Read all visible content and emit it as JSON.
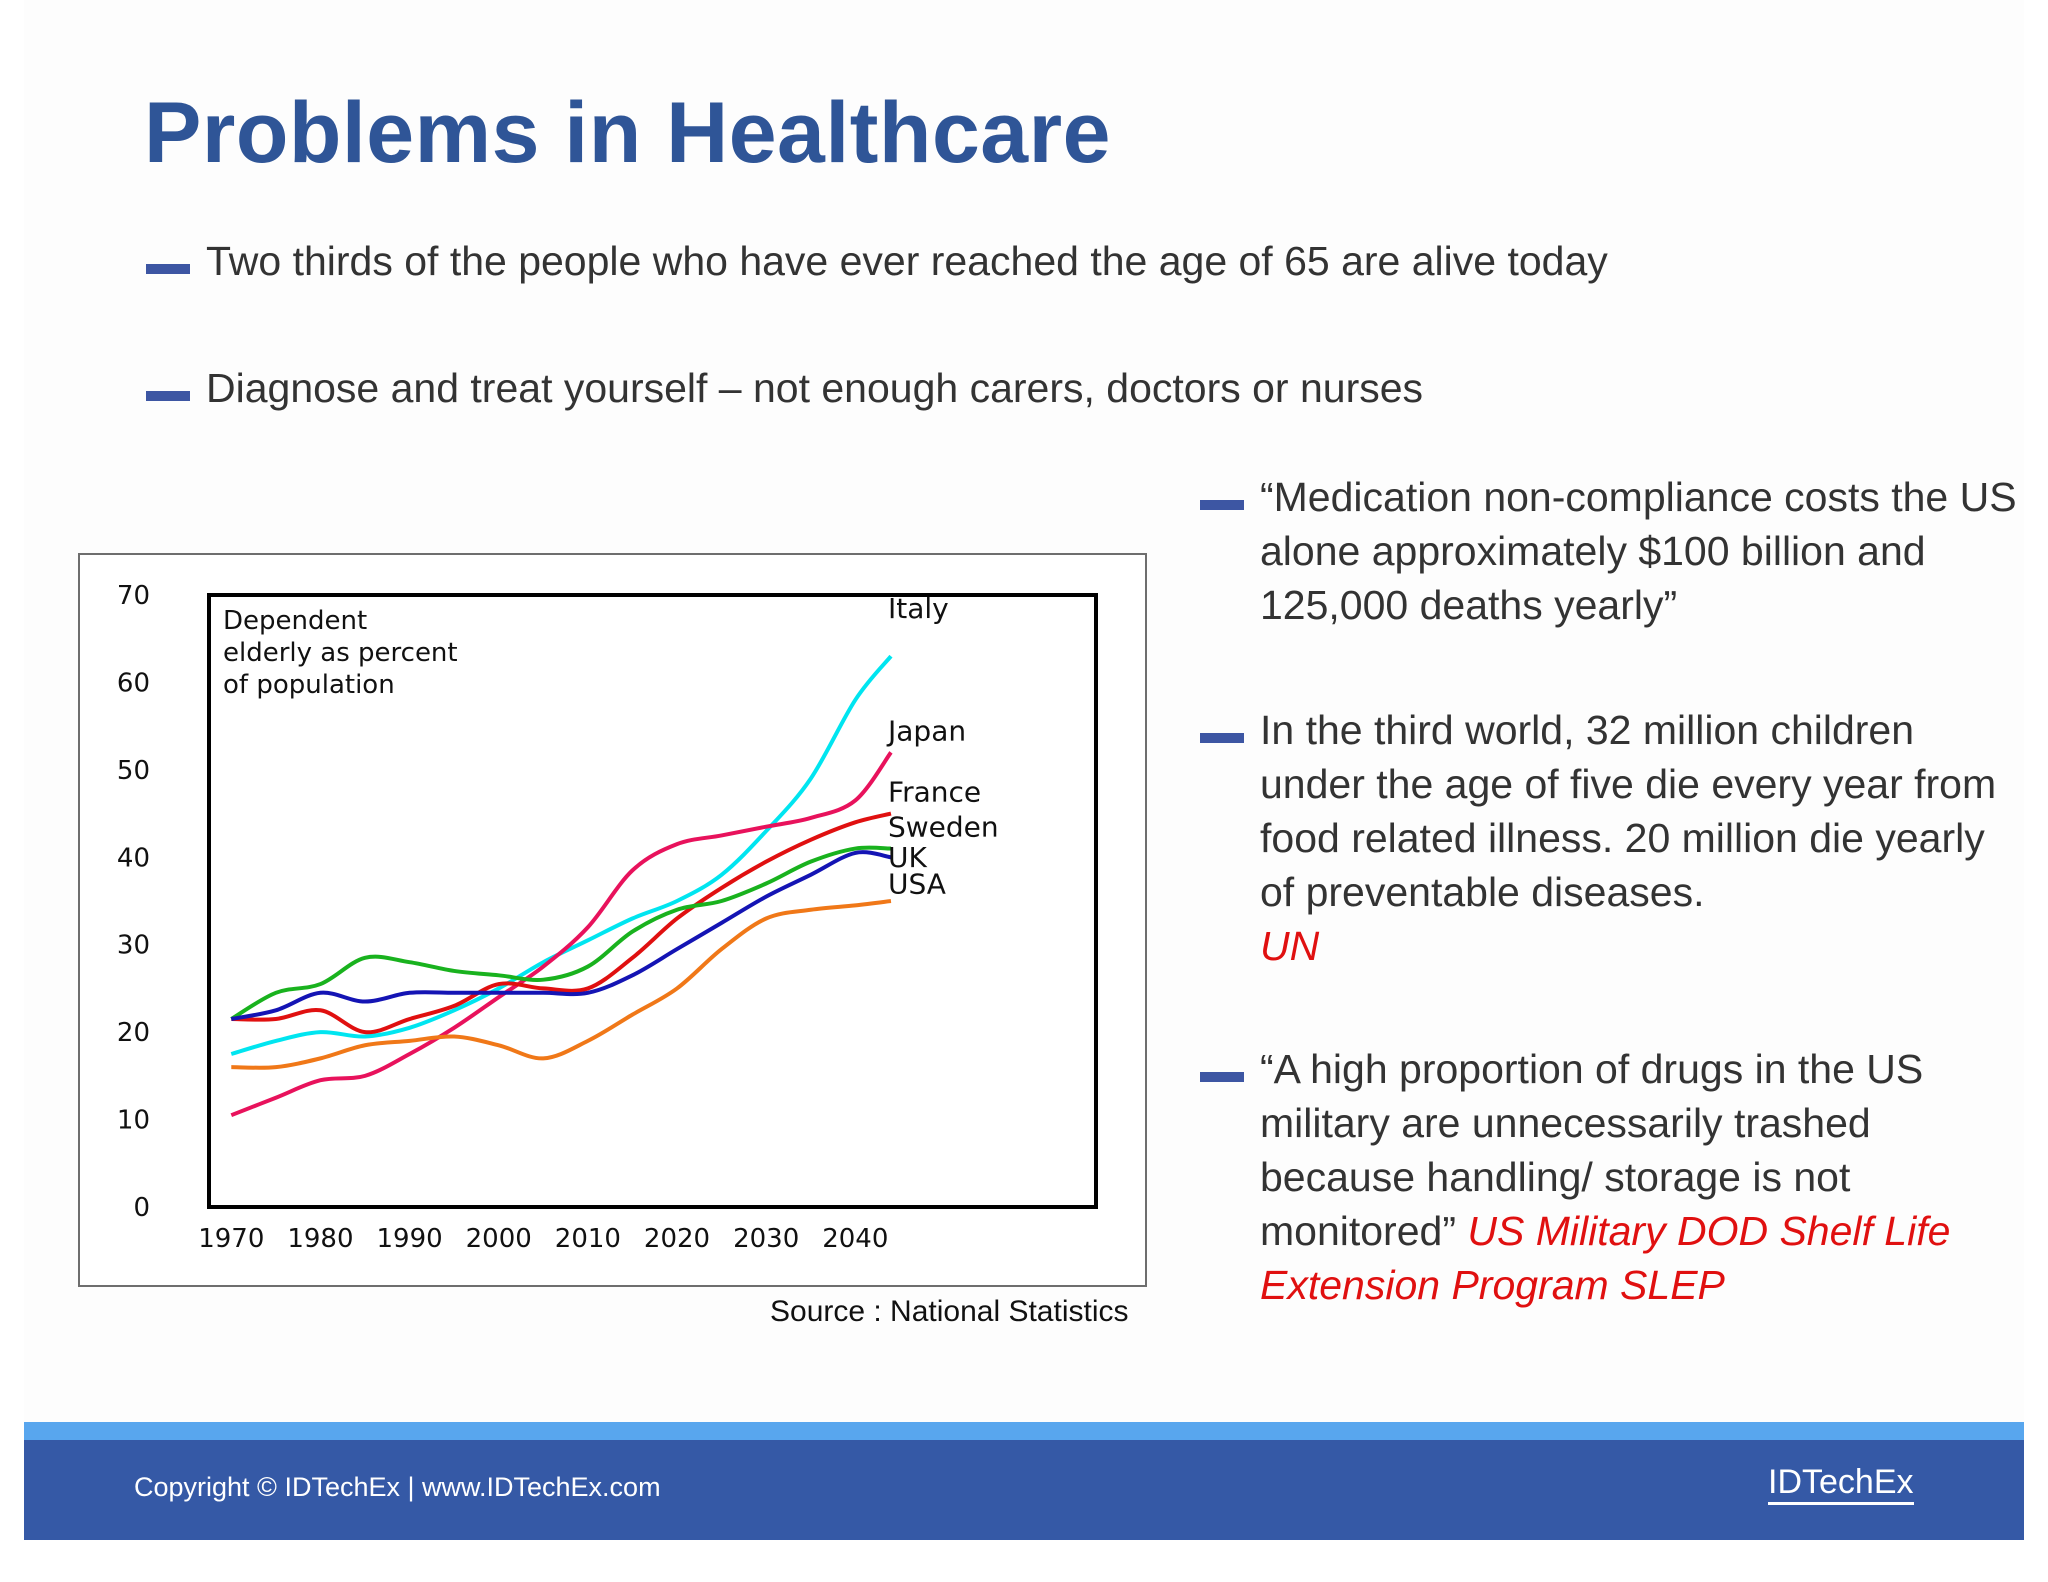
{
  "title": "Problems in Healthcare",
  "bullets_top": [
    "Two thirds of the people who have ever reached the age of 65 are alive today",
    "Diagnose and treat yourself – not enough carers, doctors or nurses"
  ],
  "bullets_right": [
    {
      "text": "“Medication non-compliance costs the US alone approximately $100 billion and 125,000 deaths yearly”",
      "source": ""
    },
    {
      "text": "In the third world, 32 million children under the age of five die every year from food related illness. 20 million die yearly of preventable diseases.",
      "source": "UN"
    },
    {
      "text": "“A high proportion of drugs in the US military are unnecessarily trashed because handling/ storage is not monitored”",
      "source": "US Military DOD Shelf Life Extension Program SLEP"
    }
  ],
  "source_note": "Source : National Statistics",
  "footer": {
    "copyright": "Copyright © IDTechEx  |  www.IDTechEx.com",
    "logo": "IDTechEx"
  },
  "colors": {
    "title": "#2f5597",
    "bullet_dash": "#3d56a3",
    "citation": "#e01010",
    "footer_band": "#3559a6",
    "footer_stripe": "#58a6ee"
  },
  "chart_data": {
    "type": "line",
    "title": "",
    "annotation": "Dependent elderly as percent of population",
    "xlabel": "",
    "ylabel": "",
    "xlim": [
      1967.5,
      2067
    ],
    "ylim": [
      0,
      70
    ],
    "x_ticks": [
      1970,
      1980,
      1990,
      2000,
      2010,
      2020,
      2030,
      2040
    ],
    "y_ticks": [
      0,
      10,
      20,
      30,
      40,
      50,
      60,
      70
    ],
    "legend": "inline labels at line ends",
    "grid": false,
    "series": [
      {
        "name": "Italy",
        "color": "#00e5f0",
        "x": [
          1970,
          1975,
          1980,
          1985,
          1990,
          1995,
          2000,
          2005,
          2010,
          2015,
          2020,
          2025,
          2030,
          2035,
          2040,
          2044
        ],
        "values": [
          17.5,
          19,
          20,
          19.5,
          20.5,
          22.5,
          25,
          28,
          30.5,
          33,
          35,
          38,
          43,
          49,
          58,
          63
        ]
      },
      {
        "name": "Japan",
        "color": "#e8125c",
        "x": [
          1970,
          1975,
          1980,
          1985,
          1990,
          1995,
          2000,
          2005,
          2010,
          2015,
          2020,
          2025,
          2030,
          2035,
          2040,
          2044
        ],
        "values": [
          10.5,
          12.5,
          14.5,
          15,
          17.5,
          20.5,
          24,
          27.5,
          32,
          38.5,
          41.5,
          42.5,
          43.5,
          44.5,
          46.5,
          52
        ]
      },
      {
        "name": "France",
        "color": "#e01010",
        "x": [
          1970,
          1975,
          1980,
          1985,
          1990,
          1995,
          2000,
          2005,
          2010,
          2015,
          2020,
          2025,
          2030,
          2035,
          2040,
          2044
        ],
        "values": [
          21.5,
          21.5,
          22.5,
          20,
          21.5,
          23,
          25.5,
          25,
          25,
          28.5,
          33,
          36.5,
          39.5,
          42,
          44,
          45
        ]
      },
      {
        "name": "Sweden",
        "color": "#19b21e",
        "x": [
          1970,
          1975,
          1980,
          1985,
          1990,
          1995,
          2000,
          2005,
          2010,
          2015,
          2020,
          2025,
          2030,
          2035,
          2040,
          2044
        ],
        "values": [
          21.5,
          24.5,
          25.5,
          28.5,
          28,
          27,
          26.5,
          26,
          27.5,
          31.5,
          34,
          35,
          37,
          39.5,
          41,
          41
        ]
      },
      {
        "name": "UK",
        "color": "#1414b4",
        "x": [
          1970,
          1975,
          1980,
          1985,
          1990,
          1995,
          2000,
          2005,
          2010,
          2015,
          2020,
          2025,
          2030,
          2035,
          2040,
          2044
        ],
        "values": [
          21.5,
          22.5,
          24.5,
          23.5,
          24.5,
          24.5,
          24.5,
          24.5,
          24.5,
          26.5,
          29.5,
          32.5,
          35.5,
          38,
          40.5,
          40
        ]
      },
      {
        "name": "USA",
        "color": "#f07818",
        "x": [
          1970,
          1975,
          1980,
          1985,
          1990,
          1995,
          2000,
          2005,
          2010,
          2015,
          2020,
          2025,
          2030,
          2035,
          2040,
          2044
        ],
        "values": [
          16,
          16,
          17,
          18.5,
          19,
          19.5,
          18.5,
          17,
          19,
          22,
          25,
          29.5,
          33,
          34,
          34.5,
          35
        ]
      }
    ]
  }
}
